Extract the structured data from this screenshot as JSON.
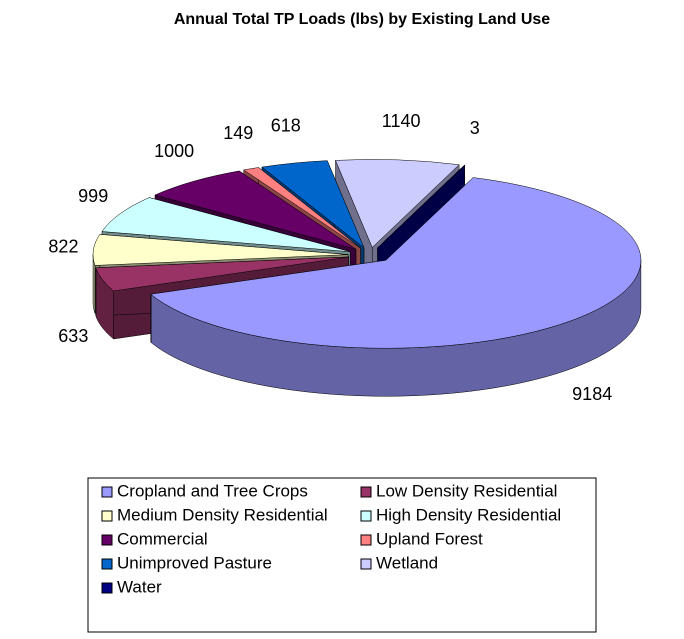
{
  "chart_data": {
    "type": "pie3d",
    "title": "Annual Total TP Loads (lbs) by Existing Land Use",
    "categories": [
      "Cropland and Tree Crops",
      "Low Density Residential",
      "Medium Density Residential",
      "High Density Residential",
      "Commercial",
      "Upland Forest",
      "Unimproved Pasture",
      "Wetland",
      "Water"
    ],
    "values": [
      9184,
      633,
      822,
      999,
      1000,
      149,
      618,
      1140,
      3
    ],
    "colors": [
      "#9999ff",
      "#993366",
      "#ffffcc",
      "#ccffff",
      "#660066",
      "#ff8080",
      "#0066cc",
      "#ccccff",
      "#000080"
    ],
    "legend": "bottom"
  }
}
